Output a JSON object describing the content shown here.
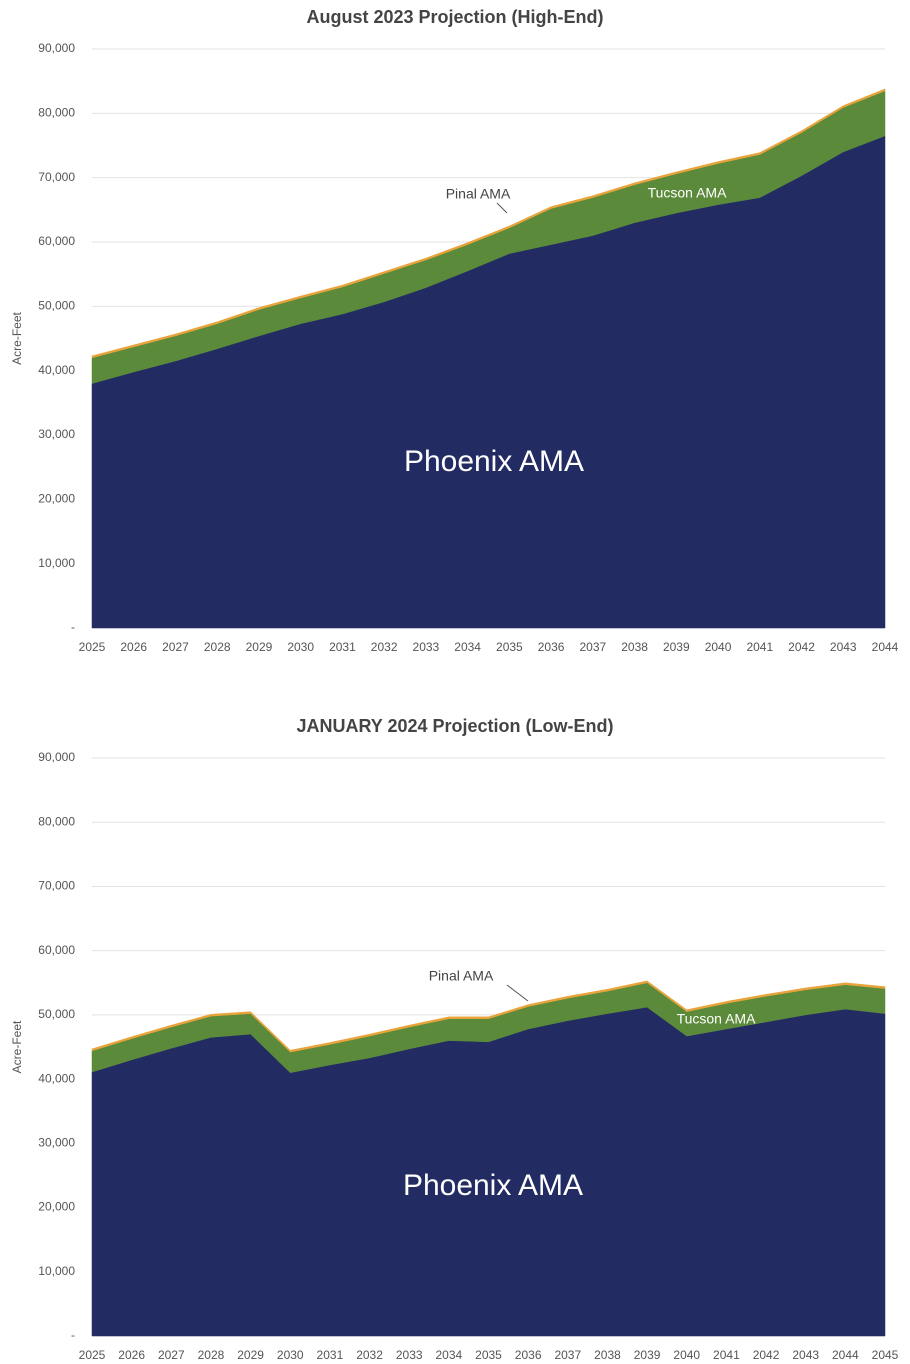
{
  "chart_data": [
    {
      "type": "area",
      "stacked": true,
      "title": "August 2023 Projection (High-End)",
      "y_label": "Acre-Feet",
      "categories": [
        "2025",
        "2026",
        "2027",
        "2028",
        "2029",
        "2030",
        "2031",
        "2032",
        "2033",
        "2034",
        "2035",
        "2036",
        "2037",
        "2038",
        "2039",
        "2040",
        "2041",
        "2042",
        "2043",
        "2044"
      ],
      "series": [
        {
          "name": "Phoenix AMA",
          "color": "#232c62",
          "values": [
            38000,
            39800,
            41500,
            43400,
            45400,
            47300,
            48800,
            50700,
            52900,
            55500,
            58200,
            59600,
            61000,
            63000,
            64500,
            65800,
            66900,
            70300,
            74000,
            76500
          ]
        },
        {
          "name": "Tucson AMA",
          "color": "#5a8a3a",
          "values": [
            4000,
            3900,
            3900,
            3900,
            4100,
            4000,
            4200,
            4400,
            4300,
            4100,
            4000,
            5600,
            5900,
            5900,
            6100,
            6400,
            6700,
            6700,
            6900,
            7000
          ]
        },
        {
          "name": "Pinal AMA",
          "color": "#e8a33a",
          "values": [
            300,
            300,
            300,
            300,
            300,
            300,
            300,
            300,
            300,
            300,
            300,
            300,
            300,
            300,
            300,
            300,
            300,
            300,
            300,
            300
          ]
        }
      ],
      "ylim": [
        0,
        90000
      ],
      "yticks": [
        {
          "value": 0,
          "label": "-"
        },
        {
          "value": 10000,
          "label": "10,000"
        },
        {
          "value": 20000,
          "label": "20,000"
        },
        {
          "value": 30000,
          "label": "30,000"
        },
        {
          "value": 40000,
          "label": "40,000"
        },
        {
          "value": 50000,
          "label": "50,000"
        },
        {
          "value": 60000,
          "label": "60,000"
        },
        {
          "value": 70000,
          "label": "70,000"
        },
        {
          "value": 80000,
          "label": "80,000"
        },
        {
          "value": 90000,
          "label": "90,000"
        }
      ],
      "grid": true
    },
    {
      "type": "area",
      "stacked": true,
      "title": "JANUARY 2024 Projection (Low-End)",
      "y_label": "Acre-Feet",
      "categories": [
        "2025",
        "2026",
        "2027",
        "2028",
        "2029",
        "2030",
        "2031",
        "2032",
        "2033",
        "2034",
        "2035",
        "2036",
        "2037",
        "2038",
        "2039",
        "2040",
        "2041",
        "2042",
        "2043",
        "2044",
        "2045"
      ],
      "series": [
        {
          "name": "Phoenix AMA",
          "color": "#232c62",
          "values": [
            41100,
            43000,
            44800,
            46500,
            47000,
            41000,
            42200,
            43300,
            44700,
            46000,
            45800,
            47800,
            49100,
            50200,
            51200,
            46700,
            47800,
            48900,
            50000,
            50900,
            50200
          ]
        },
        {
          "name": "Tucson AMA",
          "color": "#5a8a3a",
          "values": [
            3300,
            3300,
            3300,
            3300,
            3200,
            3200,
            3200,
            3400,
            3400,
            3400,
            3600,
            3500,
            3500,
            3500,
            3800,
            3800,
            4000,
            4000,
            3900,
            3800,
            3900
          ]
        },
        {
          "name": "Pinal AMA",
          "color": "#e8a33a",
          "values": [
            300,
            300,
            300,
            300,
            300,
            300,
            300,
            300,
            300,
            300,
            300,
            300,
            300,
            300,
            300,
            300,
            300,
            300,
            300,
            300,
            300
          ]
        }
      ],
      "ylim": [
        0,
        90000
      ],
      "yticks": [
        {
          "value": 0,
          "label": "-"
        },
        {
          "value": 10000,
          "label": "10,000"
        },
        {
          "value": 20000,
          "label": "20,000"
        },
        {
          "value": 30000,
          "label": "30,000"
        },
        {
          "value": 40000,
          "label": "40,000"
        },
        {
          "value": 50000,
          "label": "50,000"
        },
        {
          "value": 60000,
          "label": "60,000"
        },
        {
          "value": 70000,
          "label": "70,000"
        },
        {
          "value": 80000,
          "label": "80,000"
        },
        {
          "value": 90000,
          "label": "90,000"
        }
      ],
      "grid": true
    }
  ]
}
